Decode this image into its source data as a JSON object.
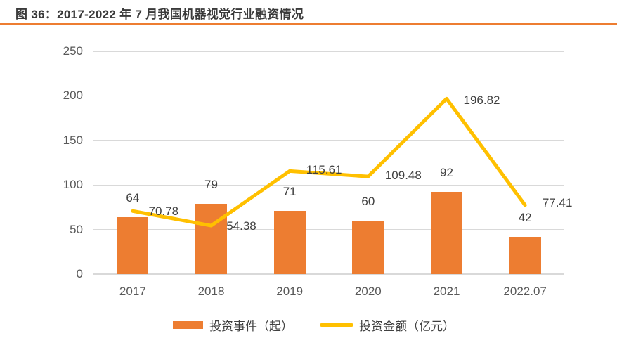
{
  "title": {
    "label": "图 36：2017-2022 年 7 月我国机器视觉行业融资情况"
  },
  "colors": {
    "accent_rule": "#ED7D31",
    "bar": "#ED7D31",
    "line": "#FFC000",
    "title_text": "#3a3a3a",
    "axis_text": "#595959",
    "label_text": "#404040",
    "gridline": "#D9D9D9"
  },
  "chart_data": {
    "type": "combo-bar-line",
    "categories": [
      "2017",
      "2018",
      "2019",
      "2020",
      "2021",
      "2022.07"
    ],
    "series": [
      {
        "name": "投资事件（起）",
        "type": "bar",
        "color": "#ED7D31",
        "values": [
          64,
          79,
          71,
          60,
          92,
          42
        ],
        "labels": [
          "64",
          "79",
          "71",
          "60",
          "92",
          "42"
        ]
      },
      {
        "name": "投资金额（亿元）",
        "type": "line",
        "color": "#FFC000",
        "values": [
          70.78,
          54.38,
          115.61,
          109.48,
          196.82,
          77.41
        ],
        "labels": [
          "70.78",
          "54.38",
          "115.61",
          "109.48",
          "196.82",
          "77.41"
        ],
        "label_offsets": [
          [
            44,
            1
          ],
          [
            43,
            1
          ],
          [
            49,
            -1
          ],
          [
            50,
            -1
          ],
          [
            50,
            3
          ],
          [
            46,
            -3
          ]
        ]
      }
    ],
    "xlabel": "",
    "ylabel": "",
    "ylim": [
      0,
      250
    ],
    "yticks": [
      0,
      50,
      100,
      150,
      200,
      250
    ],
    "grid": true,
    "legend_position": "bottom"
  },
  "legend": {
    "items": [
      {
        "label": "投资事件（起）",
        "swatch": "bar"
      },
      {
        "label": "投资金额（亿元）",
        "swatch": "line"
      }
    ]
  }
}
